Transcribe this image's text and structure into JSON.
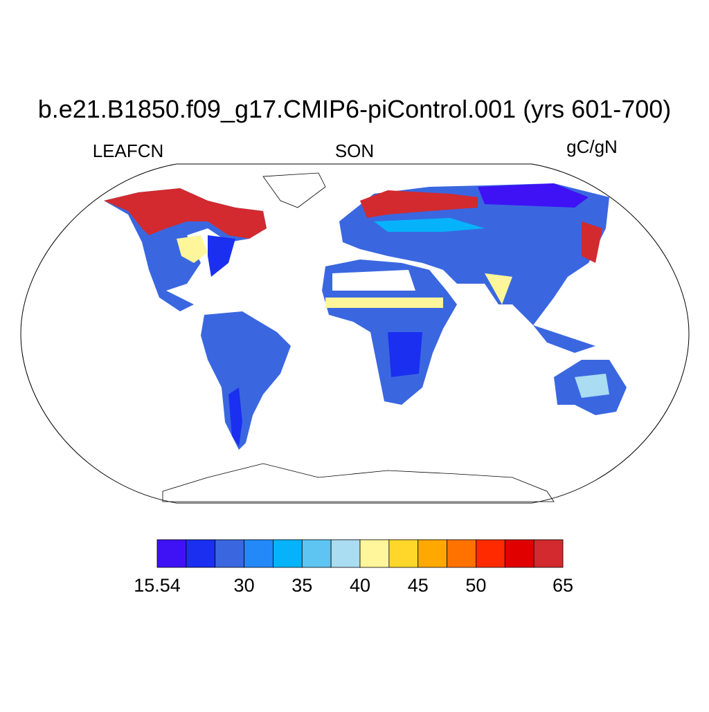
{
  "title": "b.e21.B1850.f09_g17.CMIP6-piControl.001 (yrs 601-700)",
  "left_label": "LEAFCN",
  "center_label": "SON",
  "right_label": "gC/gN",
  "colorbar": {
    "colors": [
      "#3e12f5",
      "#1a2ff0",
      "#3a67e0",
      "#2388f8",
      "#06b3fa",
      "#5ec4f2",
      "#aadcf2",
      "#fff59a",
      "#ffd72a",
      "#ffa800",
      "#ff7200",
      "#ff2a00",
      "#e00000",
      "#d22a2e"
    ],
    "labels": [
      "15.54",
      null,
      null,
      "30",
      null,
      "35",
      null,
      "40",
      null,
      "45",
      null,
      "50",
      null,
      null,
      "65"
    ]
  }
}
